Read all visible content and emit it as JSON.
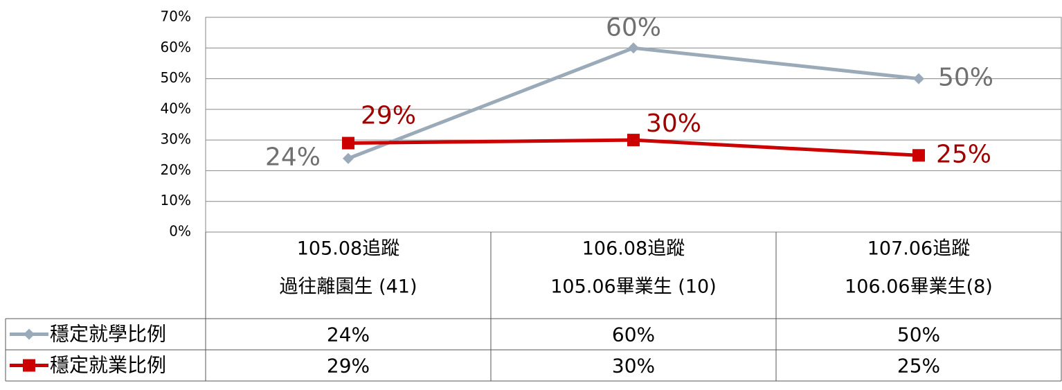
{
  "chart_data": {
    "type": "line",
    "categories": [
      [
        "105.08追蹤",
        "過往離園生 (41)"
      ],
      [
        "106.08追蹤",
        "105.06畢業生 (10)"
      ],
      [
        "107.06追蹤",
        "106.06畢業生(8)"
      ]
    ],
    "series": [
      {
        "name": "穩定就學比例",
        "color": "#9aaab9",
        "label_color": "#707070",
        "marker": "diamond",
        "values": [
          24,
          60,
          50
        ],
        "value_labels": [
          "24%",
          "60%",
          "50%"
        ]
      },
      {
        "name": "穩定就業比例",
        "color": "#cc0000",
        "label_color": "#a00000",
        "marker": "square",
        "values": [
          29,
          30,
          25
        ],
        "value_labels": [
          "29%",
          "30%",
          "25%"
        ]
      }
    ],
    "ylim": [
      0,
      70
    ],
    "yticks": [
      {
        "value": 0,
        "label": "0%"
      },
      {
        "value": 10,
        "label": "10%"
      },
      {
        "value": 20,
        "label": "20%"
      },
      {
        "value": 30,
        "label": "30%"
      },
      {
        "value": 40,
        "label": "40%"
      },
      {
        "value": 50,
        "label": "50%"
      },
      {
        "value": 60,
        "label": "60%"
      },
      {
        "value": 70,
        "label": "70%"
      }
    ],
    "grid": true
  }
}
